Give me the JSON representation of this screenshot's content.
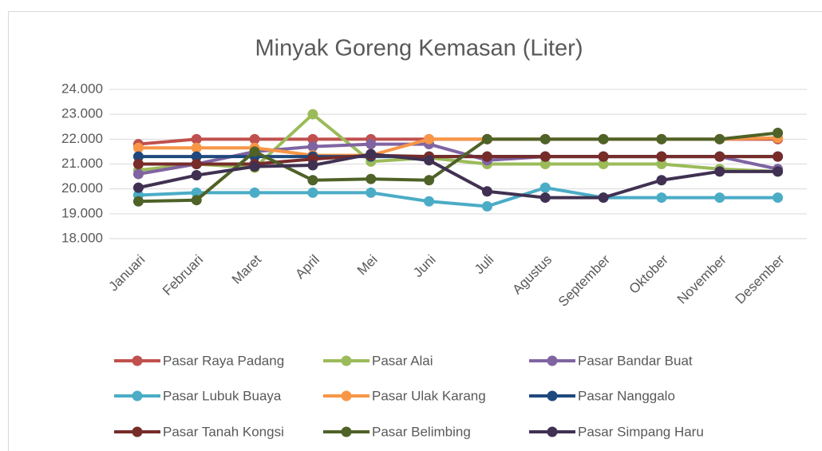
{
  "chart_data": {
    "type": "line",
    "title": "Minyak Goreng Kemasan (Liter)",
    "categories": [
      "Januari",
      "Februari",
      "Maret",
      "April",
      "Mei",
      "Juni",
      "Juli",
      "Agustus",
      "September",
      "Oktober",
      "November",
      "Desember"
    ],
    "ylim": [
      18000,
      24000
    ],
    "yticks": [
      {
        "value": 18000,
        "label": "18.000"
      },
      {
        "value": 19000,
        "label": "19.000"
      },
      {
        "value": 20000,
        "label": "20.000"
      },
      {
        "value": 21000,
        "label": "21.000"
      },
      {
        "value": 22000,
        "label": "22.000"
      },
      {
        "value": 23000,
        "label": "23.000"
      },
      {
        "value": 24000,
        "label": "24.000"
      }
    ],
    "grid": true,
    "legend": "bottom",
    "series": [
      {
        "name": "Pasar Raya Padang",
        "color": "#c0504d",
        "values": [
          21800,
          22000,
          22000,
          22000,
          22000,
          22000,
          22000,
          22000,
          22000,
          22000,
          22000,
          22000
        ]
      },
      {
        "name": "Pasar Alai",
        "color": "#9bbb59",
        "values": [
          20750,
          21000,
          20850,
          23000,
          21100,
          21250,
          21000,
          21000,
          21000,
          21000,
          20800,
          20700
        ]
      },
      {
        "name": "Pasar Bandar Buat",
        "color": "#8064a2",
        "values": [
          20600,
          21000,
          21500,
          21700,
          21800,
          21800,
          21150,
          21300,
          21300,
          21300,
          21300,
          20800
        ]
      },
      {
        "name": "Pasar Lubuk Buaya",
        "color": "#4bacc6",
        "values": [
          19750,
          19850,
          19850,
          19850,
          19850,
          19500,
          19300,
          20050,
          19650,
          19650,
          19650,
          19650
        ]
      },
      {
        "name": "Pasar Ulak Karang",
        "color": "#f79646",
        "values": [
          21650,
          21650,
          21650,
          21350,
          21350,
          22000,
          22000,
          22000,
          22000,
          22000,
          22000,
          22050
        ]
      },
      {
        "name": "Pasar Nanggalo",
        "color": "#1f497d",
        "values": [
          21300,
          21300,
          21300,
          21300,
          21300,
          21300,
          21300,
          21300,
          21300,
          21300,
          21300,
          21300
        ]
      },
      {
        "name": "Pasar Tanah Kongsi",
        "color": "#772c2a",
        "values": [
          21000,
          21000,
          21000,
          21200,
          21350,
          21300,
          21300,
          21300,
          21300,
          21300,
          21300,
          21300
        ]
      },
      {
        "name": "Pasar Belimbing",
        "color": "#4f6228",
        "values": [
          19500,
          19550,
          21500,
          20350,
          20400,
          20350,
          22000,
          22000,
          22000,
          22000,
          22000,
          22250
        ]
      },
      {
        "name": "Pasar Simpang Haru",
        "color": "#403152",
        "values": [
          20050,
          20550,
          20900,
          20950,
          21400,
          21150,
          19900,
          19650,
          19650,
          20350,
          20700,
          20700
        ]
      }
    ]
  }
}
